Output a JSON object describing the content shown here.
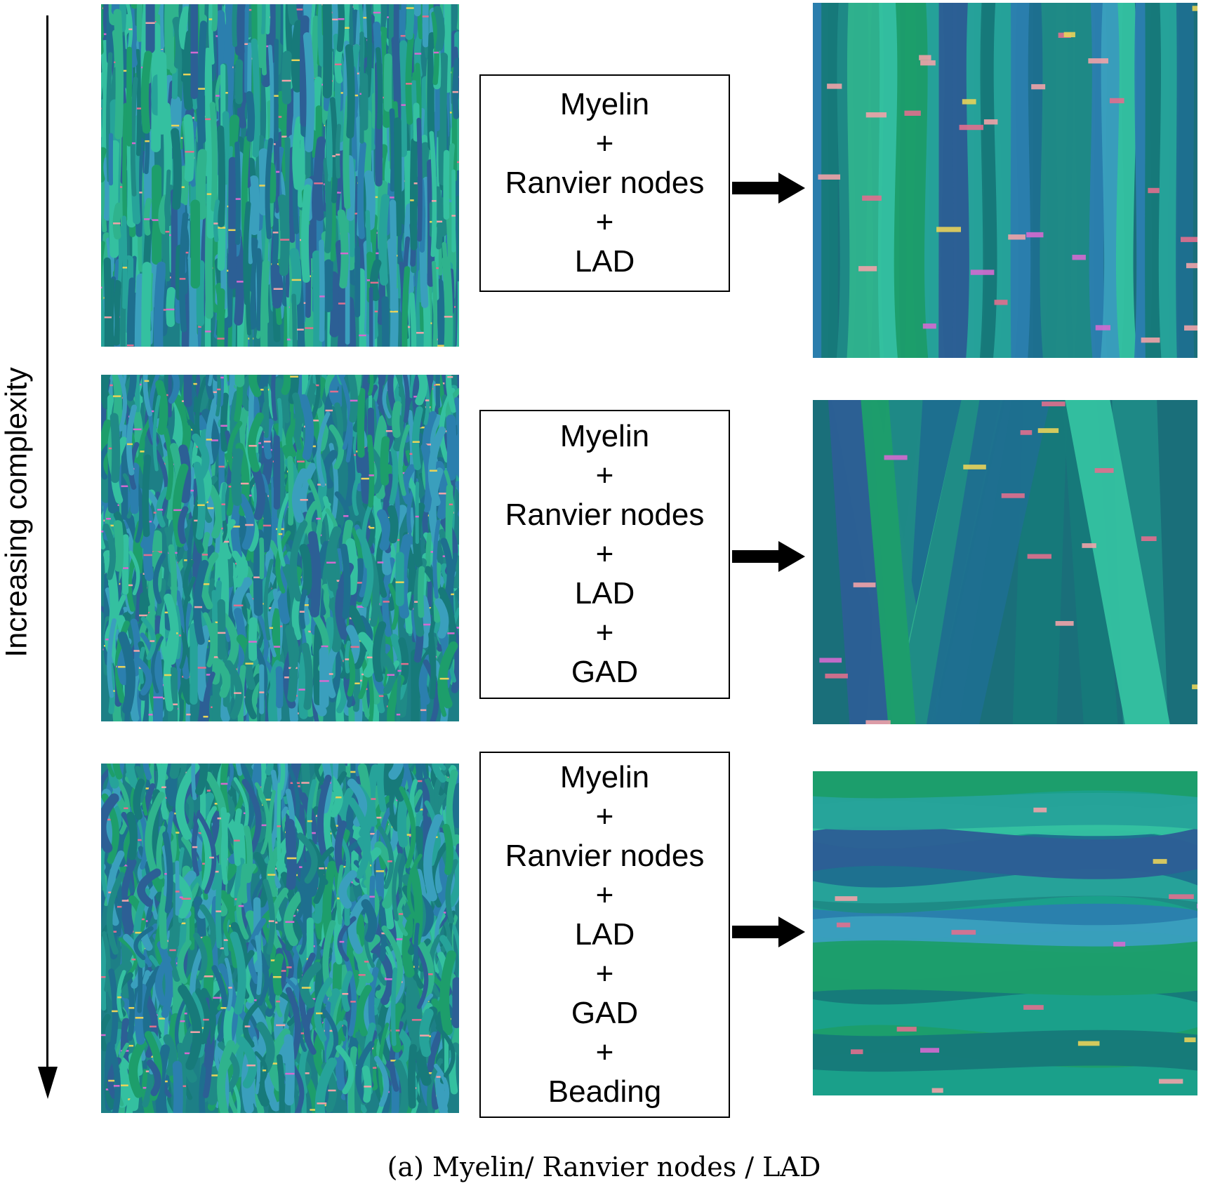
{
  "axis": {
    "label": "Increasing complexity"
  },
  "rows": [
    {
      "terms": [
        "Myelin",
        "+",
        "Ranvier nodes",
        "+",
        "LAD"
      ]
    },
    {
      "terms": [
        "Myelin",
        "+",
        "Ranvier nodes",
        "+",
        "LAD",
        "+",
        "GAD"
      ]
    },
    {
      "terms": [
        "Myelin",
        "+",
        "Ranvier nodes",
        "+",
        "LAD",
        "+",
        "GAD",
        "+",
        "Beading"
      ]
    }
  ],
  "caption": "(a) Myelin/ Ranvier nodes / LAD",
  "colors": {
    "fibers": [
      "#1f8a86",
      "#26a39a",
      "#2b7fae",
      "#1e6f8f",
      "#2fb38d",
      "#1d9e6b",
      "#3a9fbd",
      "#177a7a",
      "#2c5f95",
      "#34c0a0"
    ],
    "nodes": [
      "#e06f8e",
      "#f0a3a8",
      "#d46ad0",
      "#e8d35a"
    ]
  }
}
